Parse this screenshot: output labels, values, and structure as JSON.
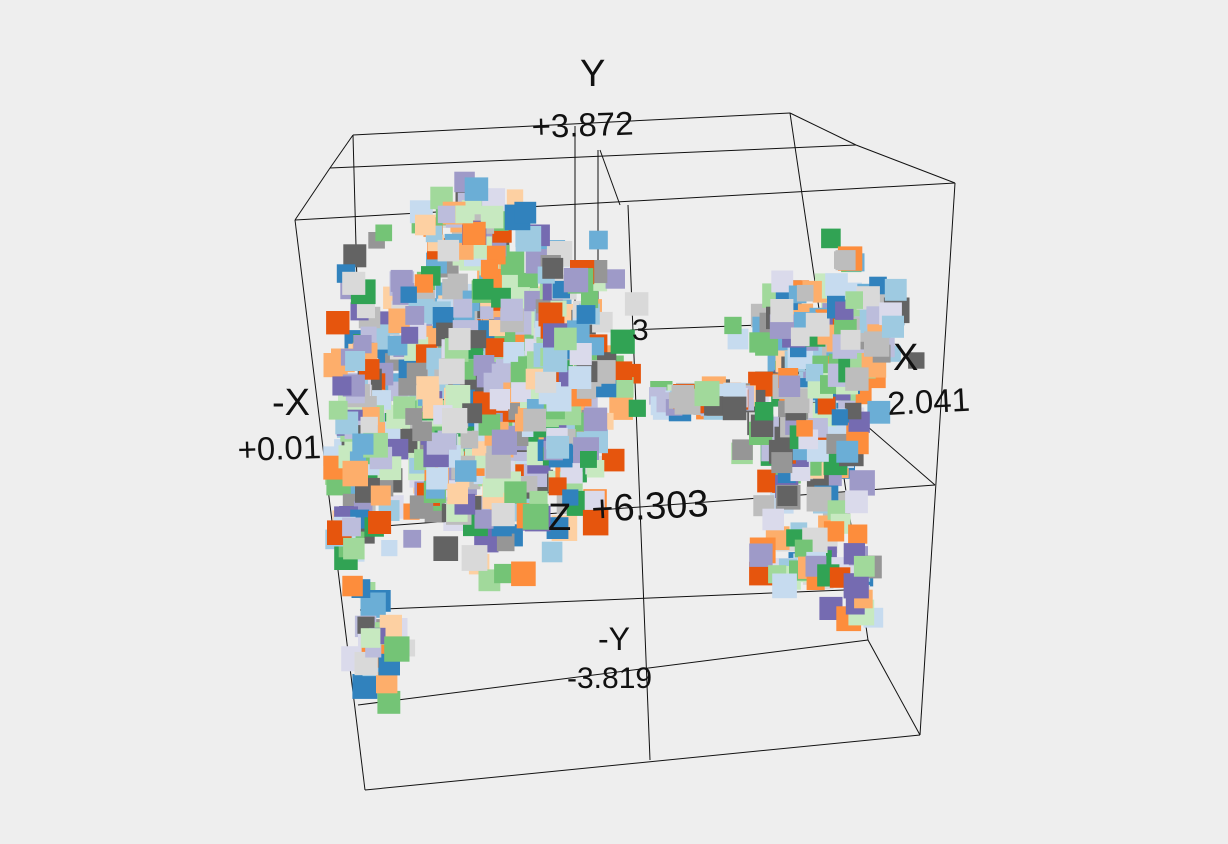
{
  "chart_data": {
    "type": "scatter",
    "projection": "3d",
    "marker": "square",
    "axes": {
      "x": {
        "neg_label": "-X",
        "pos_label": "X",
        "neg_value": "+0.01",
        "pos_value": "2.041"
      },
      "y": {
        "neg_label": "-Y",
        "pos_label": "Y",
        "neg_value": "-3.819",
        "pos_value": "+3.872"
      },
      "z": {
        "label": "Z",
        "value": "+6.303"
      },
      "hidden_label": "3"
    },
    "palette": [
      "#3182bd",
      "#6baed6",
      "#9ecae1",
      "#c6dbef",
      "#e6550d",
      "#fd8d3c",
      "#fdae6b",
      "#fdd0a2",
      "#31a354",
      "#74c476",
      "#a1d99b",
      "#c7e9c0",
      "#756bb1",
      "#9e9ac8",
      "#bcbddc",
      "#dadaeb",
      "#636363",
      "#969696",
      "#bdbdbd",
      "#d9d9d9"
    ],
    "background": "#eeeeee",
    "grid": true,
    "legend": "none"
  }
}
